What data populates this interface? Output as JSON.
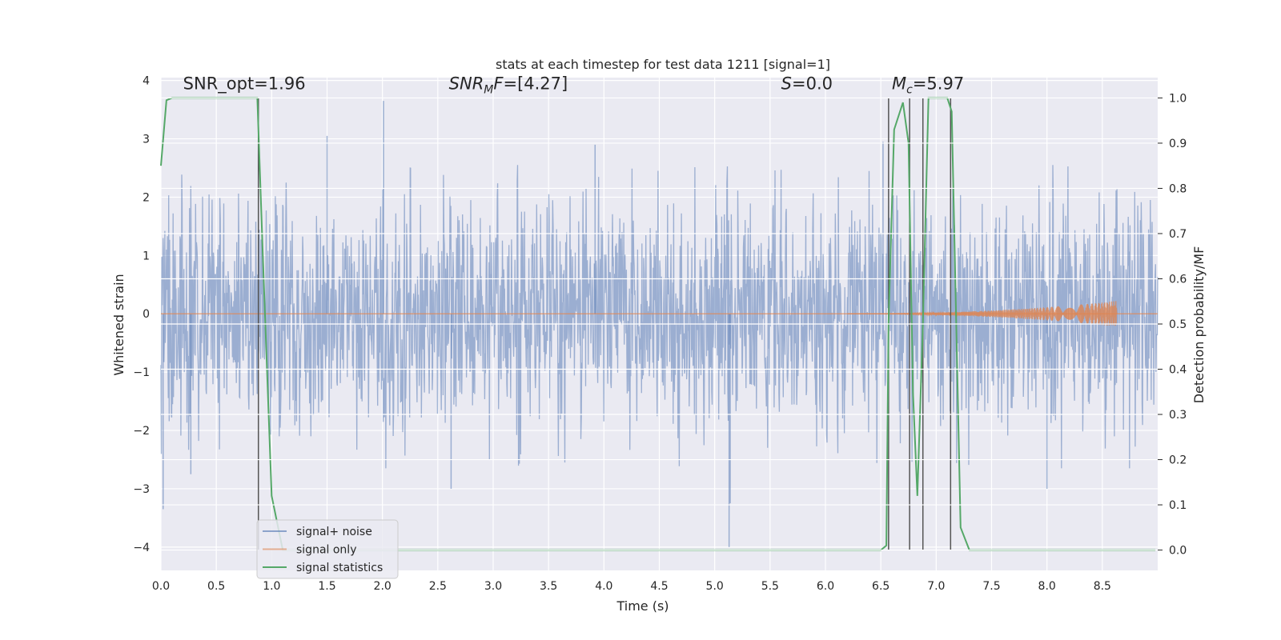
{
  "chart_data": {
    "type": "line",
    "title": "stats at each timestep for test data 1211 [signal=1]",
    "xlabel": "Time (s)",
    "ylabel": "Whitened strain",
    "y2label": "Detection probability/MF",
    "xlim": [
      0.0,
      9.0
    ],
    "ylim": [
      -4.4,
      4.05
    ],
    "y2lim": [
      -0.045,
      1.045
    ],
    "xticks": [
      "0.0",
      "0.5",
      "1.0",
      "1.5",
      "2.0",
      "2.5",
      "3.0",
      "3.5",
      "4.0",
      "4.5",
      "5.0",
      "5.5",
      "6.0",
      "6.5",
      "7.0",
      "7.5",
      "8.0",
      "8.5"
    ],
    "xtick_values": [
      0.0,
      0.5,
      1.0,
      1.5,
      2.0,
      2.5,
      3.0,
      3.5,
      4.0,
      4.5,
      5.0,
      5.5,
      6.0,
      6.5,
      7.0,
      7.5,
      8.0,
      8.5
    ],
    "yticks": [
      "4",
      "3",
      "2",
      "1",
      "0",
      "−1",
      "−2",
      "−3",
      "−4"
    ],
    "ytick_values": [
      4,
      3,
      2,
      1,
      0,
      -1,
      -2,
      -3,
      -4
    ],
    "y2ticks": [
      "1.0",
      "0.9",
      "0.8",
      "0.7",
      "0.6",
      "0.5",
      "0.4",
      "0.3",
      "0.2",
      "0.1",
      "0.0"
    ],
    "y2tick_values": [
      1.0,
      0.9,
      0.8,
      0.7,
      0.6,
      0.5,
      0.4,
      0.3,
      0.2,
      0.1,
      0.0
    ],
    "grid": true,
    "legend_position": "bottom-left",
    "annotations": [
      {
        "text": "SNR_opt=1.96",
        "x": 0.2,
        "y": 3.85
      },
      {
        "text": "SNR_MF=[4.27]",
        "x": 2.6,
        "y": 3.85
      },
      {
        "text": "S=0.0",
        "x": 5.6,
        "y": 3.85
      },
      {
        "text": "M_c=5.97",
        "x": 6.6,
        "y": 3.85
      }
    ],
    "series": [
      {
        "name": "signal+ noise",
        "color": "#4c72b0",
        "envelope": {
          "t": [
            0.0,
            0.5,
            1.0,
            1.5,
            2.0,
            2.5,
            3.0,
            3.5,
            4.0,
            4.5,
            5.0,
            5.5,
            6.0,
            6.5,
            7.0,
            7.5,
            8.0,
            8.5,
            9.0
          ],
          "upper": [
            2.1,
            2.0,
            1.9,
            2.0,
            2.0,
            1.9,
            2.0,
            2.0,
            2.0,
            1.9,
            2.0,
            1.9,
            2.0,
            2.0,
            1.9,
            2.0,
            2.0,
            2.0,
            2.0
          ],
          "lower": [
            -2.2,
            -2.1,
            -2.1,
            -2.0,
            -2.1,
            -2.1,
            -2.1,
            -2.0,
            -2.0,
            -2.1,
            -2.0,
            -2.0,
            -2.1,
            -2.0,
            -2.1,
            -2.0,
            -2.1,
            -2.1,
            -2.1
          ]
        },
        "spikes": [
          {
            "t": 0.02,
            "v": -3.35
          },
          {
            "t": 0.88,
            "v": 3.0
          },
          {
            "t": 1.5,
            "v": 3.05
          },
          {
            "t": 2.01,
            "v": 3.65
          },
          {
            "t": 2.62,
            "v": -3.0
          },
          {
            "t": 5.13,
            "v": -4.0
          },
          {
            "t": 5.14,
            "v": -3.25
          },
          {
            "t": 6.52,
            "v": 2.95
          },
          {
            "t": 8.0,
            "v": -3.0
          },
          {
            "t": 0.27,
            "v": -2.75
          },
          {
            "t": 3.92,
            "v": 2.9
          }
        ]
      },
      {
        "name": "signal only",
        "color": "#dd8452",
        "chirp": {
          "start": 6.2,
          "end": 8.63,
          "max_amplitude": 0.22
        }
      },
      {
        "name": "signal statistics",
        "color": "#55a868",
        "axis": "right",
        "x": [
          0.0,
          0.05,
          0.1,
          0.2,
          0.4,
          0.6,
          0.8,
          0.87,
          0.92,
          1.0,
          1.1,
          2.0,
          3.0,
          4.0,
          5.0,
          6.0,
          6.5,
          6.55,
          6.57,
          6.62,
          6.7,
          6.75,
          6.79,
          6.83,
          6.88,
          6.93,
          6.97,
          7.1,
          7.14,
          7.22,
          7.3,
          8.0,
          8.98
        ],
        "y": [
          0.85,
          0.995,
          1.0,
          1.0,
          1.0,
          1.0,
          1.0,
          1.0,
          0.65,
          0.12,
          0.0,
          0.0,
          0.0,
          0.0,
          0.0,
          0.0,
          0.0,
          0.01,
          0.5,
          0.93,
          0.99,
          0.9,
          0.35,
          0.12,
          0.5,
          1.0,
          1.0,
          1.0,
          0.97,
          0.05,
          0.0,
          0.0,
          0.0
        ]
      }
    ],
    "vertical_lines": [
      0.88,
      6.57,
      6.76,
      6.88,
      7.13
    ],
    "vertical_line_color": "#555555",
    "noise_seed": 1211
  }
}
